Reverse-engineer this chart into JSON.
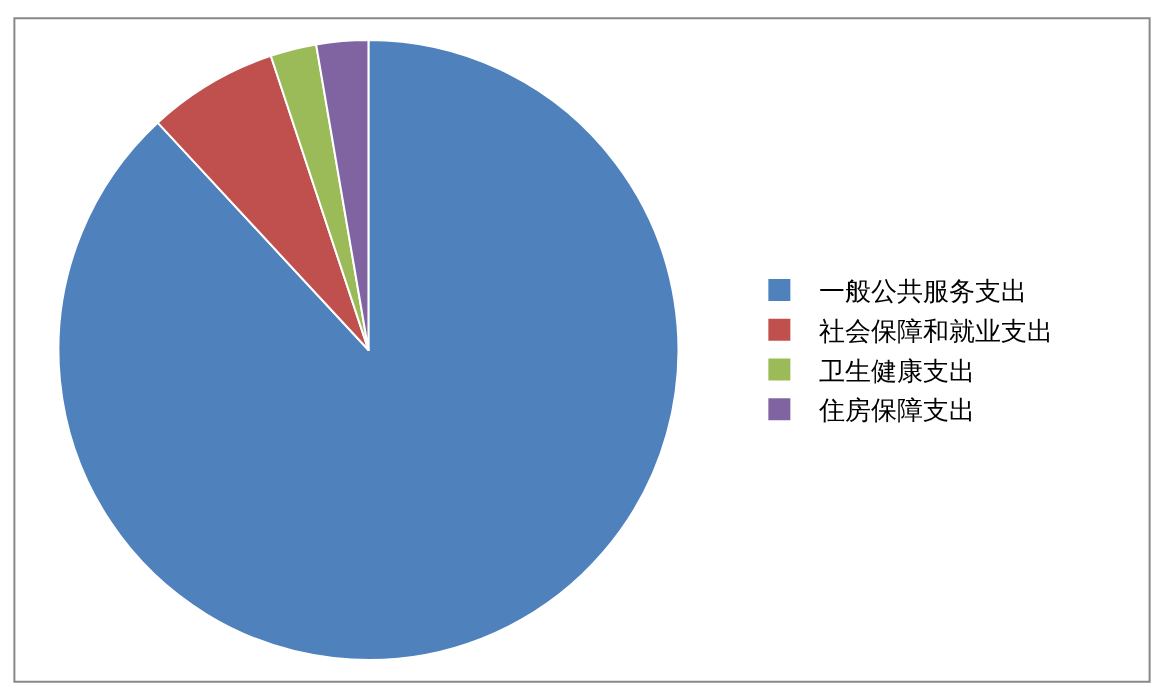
{
  "chart_data": {
    "type": "pie",
    "categories": [
      "一般公共服务支出",
      "社会保障和就业支出",
      "卫生健康支出",
      "住房保障支出"
    ],
    "values": [
      88.1,
      6.8,
      2.4,
      2.7
    ],
    "colors": [
      "#4f81bd",
      "#c0504d",
      "#9bbb59",
      "#8064a2"
    ],
    "legend": "right"
  }
}
